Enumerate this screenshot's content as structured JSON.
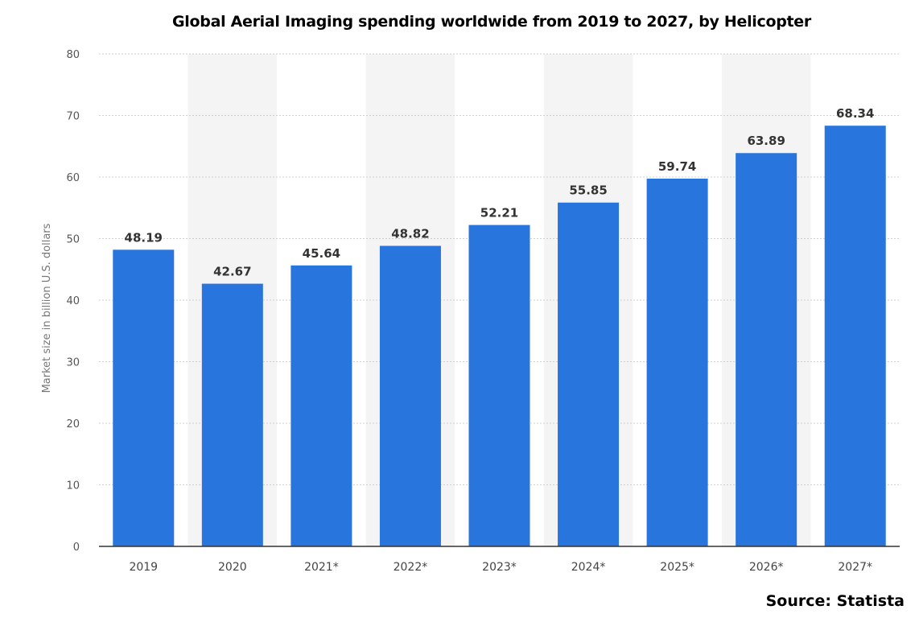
{
  "chart_data": {
    "type": "bar",
    "title": "Global Aerial Imaging spending worldwide from 2019 to 2027, by Helicopter",
    "categories": [
      "2019",
      "2020",
      "2021*",
      "2022*",
      "2023*",
      "2024*",
      "2025*",
      "2026*",
      "2027*"
    ],
    "values": [
      48.19,
      42.67,
      45.64,
      48.82,
      52.21,
      55.85,
      59.74,
      63.89,
      68.34
    ],
    "data_labels": [
      "48.19",
      "42.67",
      "45.64",
      "48.82",
      "52.21",
      "55.85",
      "59.74",
      "63.89",
      "68.34"
    ],
    "ylabel": "Market size in billion U.S. dollars",
    "xlabel": "",
    "ylim": [
      0,
      80
    ],
    "yticks": [
      "0",
      "10",
      "20",
      "30",
      "40",
      "50",
      "60",
      "70",
      "80"
    ],
    "grid": true,
    "bar_color": "#2876DD",
    "band_color": "#F4F4F4"
  },
  "source": "Source: Statista"
}
